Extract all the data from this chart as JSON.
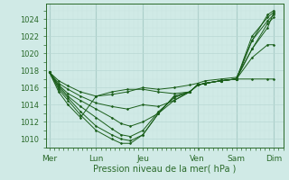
{
  "bg_color": "#d0eae6",
  "grid_major_color": "#b8d8d4",
  "grid_minor_color": "#c8e4e0",
  "line_color": "#1a5e1a",
  "xlabel": "Pression niveau de la mer( hPa )",
  "xtick_labels": [
    "Mer",
    "Lun",
    "Jeu",
    "Ven",
    "Sam",
    "Dim"
  ],
  "xtick_positions": [
    0.0,
    1.5,
    3.0,
    4.75,
    6.0,
    7.2
  ],
  "ylim": [
    1009.0,
    1025.8
  ],
  "yticks": [
    1010,
    1012,
    1014,
    1016,
    1018,
    1020,
    1022,
    1024
  ],
  "xlim": [
    -0.1,
    7.5
  ],
  "series": [
    [
      [
        0.0,
        1017.8
      ],
      [
        0.3,
        1016.8
      ],
      [
        0.6,
        1016.2
      ],
      [
        1.0,
        1015.5
      ],
      [
        1.5,
        1015.0
      ],
      [
        2.0,
        1015.2
      ],
      [
        2.5,
        1015.5
      ],
      [
        3.0,
        1016.0
      ],
      [
        3.5,
        1015.8
      ],
      [
        4.0,
        1016.0
      ],
      [
        4.5,
        1016.3
      ],
      [
        4.75,
        1016.5
      ],
      [
        5.0,
        1016.8
      ],
      [
        5.5,
        1017.0
      ],
      [
        6.0,
        1017.2
      ],
      [
        6.5,
        1020.5
      ],
      [
        7.0,
        1023.5
      ],
      [
        7.2,
        1024.2
      ]
    ],
    [
      [
        0.0,
        1017.8
      ],
      [
        0.3,
        1016.5
      ],
      [
        0.6,
        1015.8
      ],
      [
        1.0,
        1015.0
      ],
      [
        1.5,
        1014.2
      ],
      [
        2.0,
        1013.8
      ],
      [
        2.5,
        1013.5
      ],
      [
        3.0,
        1014.0
      ],
      [
        3.5,
        1013.8
      ],
      [
        4.0,
        1014.5
      ],
      [
        4.5,
        1015.5
      ],
      [
        4.75,
        1016.3
      ],
      [
        5.0,
        1016.5
      ],
      [
        5.5,
        1016.8
      ],
      [
        6.0,
        1017.0
      ],
      [
        6.5,
        1021.5
      ],
      [
        7.0,
        1023.8
      ],
      [
        7.2,
        1024.5
      ]
    ],
    [
      [
        0.0,
        1017.8
      ],
      [
        0.3,
        1016.3
      ],
      [
        0.6,
        1015.3
      ],
      [
        1.0,
        1014.5
      ],
      [
        1.5,
        1013.5
      ],
      [
        2.0,
        1012.5
      ],
      [
        2.3,
        1011.8
      ],
      [
        2.6,
        1011.5
      ],
      [
        3.0,
        1012.0
      ],
      [
        3.5,
        1013.0
      ],
      [
        4.0,
        1014.5
      ],
      [
        4.5,
        1015.5
      ],
      [
        4.75,
        1016.3
      ],
      [
        5.0,
        1016.5
      ],
      [
        5.5,
        1016.8
      ],
      [
        6.0,
        1017.0
      ],
      [
        6.5,
        1022.0
      ],
      [
        7.0,
        1024.2
      ],
      [
        7.2,
        1024.8
      ]
    ],
    [
      [
        0.0,
        1017.8
      ],
      [
        0.3,
        1016.2
      ],
      [
        0.6,
        1015.0
      ],
      [
        1.0,
        1013.8
      ],
      [
        1.5,
        1012.5
      ],
      [
        2.0,
        1011.2
      ],
      [
        2.3,
        1010.5
      ],
      [
        2.6,
        1010.3
      ],
      [
        3.0,
        1011.0
      ],
      [
        3.5,
        1013.2
      ],
      [
        4.0,
        1014.8
      ],
      [
        4.5,
        1015.5
      ],
      [
        4.75,
        1016.3
      ],
      [
        5.0,
        1016.5
      ],
      [
        5.5,
        1016.8
      ],
      [
        6.0,
        1017.0
      ],
      [
        6.5,
        1021.5
      ],
      [
        7.0,
        1024.5
      ],
      [
        7.2,
        1025.0
      ]
    ],
    [
      [
        0.0,
        1017.8
      ],
      [
        0.3,
        1016.0
      ],
      [
        0.6,
        1014.8
      ],
      [
        1.0,
        1013.2
      ],
      [
        1.5,
        1011.5
      ],
      [
        2.0,
        1010.5
      ],
      [
        2.3,
        1010.0
      ],
      [
        2.6,
        1009.8
      ],
      [
        3.0,
        1010.5
      ],
      [
        3.5,
        1013.0
      ],
      [
        4.0,
        1015.0
      ],
      [
        4.5,
        1015.5
      ],
      [
        4.75,
        1016.3
      ],
      [
        5.0,
        1016.5
      ],
      [
        5.5,
        1016.8
      ],
      [
        6.0,
        1017.0
      ],
      [
        6.5,
        1020.5
      ],
      [
        7.0,
        1023.0
      ],
      [
        7.2,
        1024.8
      ]
    ],
    [
      [
        0.0,
        1017.8
      ],
      [
        0.3,
        1015.8
      ],
      [
        0.6,
        1014.5
      ],
      [
        1.0,
        1012.8
      ],
      [
        1.5,
        1011.0
      ],
      [
        2.0,
        1010.0
      ],
      [
        2.3,
        1009.5
      ],
      [
        2.6,
        1009.5
      ],
      [
        3.0,
        1010.5
      ],
      [
        3.5,
        1013.0
      ],
      [
        4.0,
        1015.0
      ],
      [
        4.5,
        1015.5
      ],
      [
        4.75,
        1016.3
      ],
      [
        5.0,
        1016.5
      ],
      [
        5.5,
        1016.8
      ],
      [
        6.0,
        1017.0
      ],
      [
        6.5,
        1019.5
      ],
      [
        7.0,
        1021.0
      ],
      [
        7.2,
        1021.0
      ]
    ],
    [
      [
        0.0,
        1017.8
      ],
      [
        0.3,
        1015.5
      ],
      [
        0.6,
        1014.0
      ],
      [
        1.0,
        1012.5
      ],
      [
        1.5,
        1015.0
      ],
      [
        2.0,
        1015.5
      ],
      [
        2.5,
        1015.8
      ],
      [
        3.0,
        1015.8
      ],
      [
        3.5,
        1015.5
      ],
      [
        4.0,
        1015.3
      ],
      [
        4.5,
        1015.5
      ],
      [
        4.75,
        1016.3
      ],
      [
        5.0,
        1016.5
      ],
      [
        5.5,
        1016.8
      ],
      [
        6.0,
        1017.0
      ],
      [
        6.5,
        1017.0
      ],
      [
        7.0,
        1017.0
      ],
      [
        7.2,
        1017.0
      ]
    ]
  ]
}
